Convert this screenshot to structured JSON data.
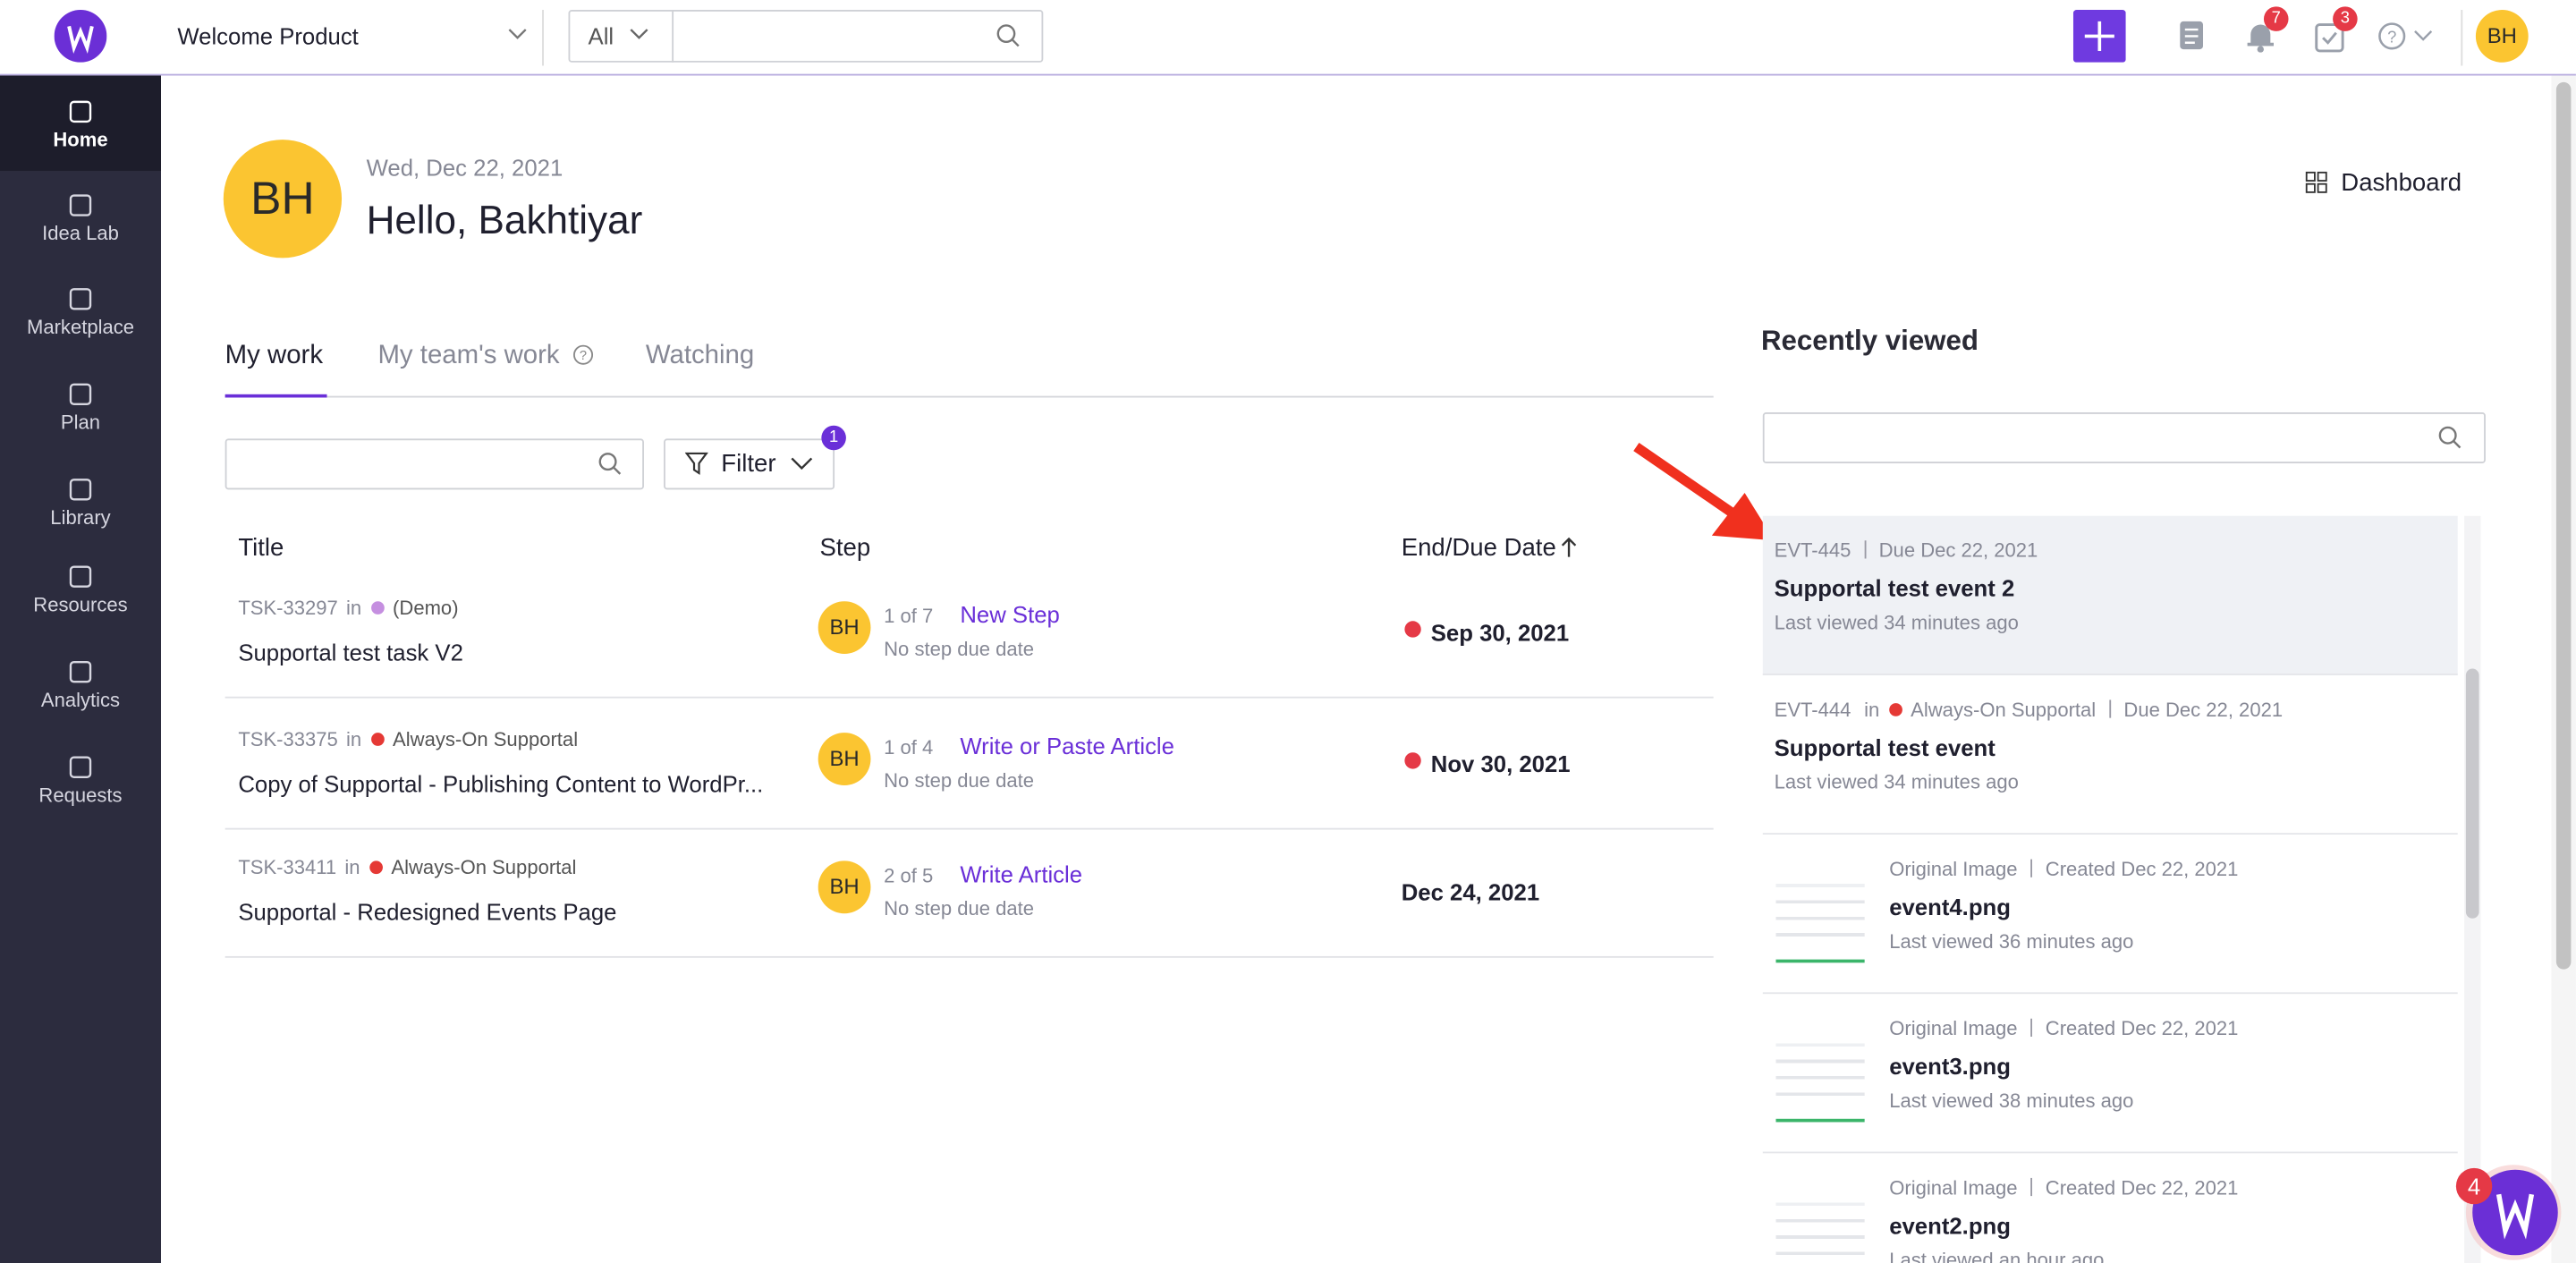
{
  "top_bar": {
    "workspace": "Welcome Product",
    "search_scope": "All",
    "notifications_badge": "7",
    "tasks_badge": "3",
    "avatar": "BH"
  },
  "sidebar": {
    "items": [
      "Home",
      "Idea Lab",
      "Marketplace",
      "Plan",
      "Library",
      "Resources",
      "Analytics",
      "Requests"
    ]
  },
  "header": {
    "avatar": "BH",
    "date": "Wed, Dec 22, 2021",
    "greeting": "Hello, Bakhtiyar",
    "dashboard": "Dashboard"
  },
  "tabs": [
    "My work",
    "My team's work",
    "Watching"
  ],
  "filter": {
    "label": "Filter",
    "badge": "1"
  },
  "table": {
    "columns": [
      "Title",
      "Step",
      "End/Due Date"
    ],
    "rows": [
      {
        "id": "TSK-33297",
        "in": "in",
        "project": "(Demo)",
        "project_color": "#c58fe0",
        "title": "Supportal test task V2",
        "assignee": "BH",
        "step_count": "1 of 7",
        "step": "New Step",
        "step_due": "No step due date",
        "due": "Sep 30, 2021",
        "overdue": true
      },
      {
        "id": "TSK-33375",
        "in": "in",
        "project": "Always-On Supportal",
        "project_color": "#e53935",
        "title": "Copy of Supportal - Publishing Content to WordPr...",
        "assignee": "BH",
        "step_count": "1 of 4",
        "step": "Write or Paste Article",
        "step_due": "No step due date",
        "due": "Nov 30, 2021",
        "overdue": true
      },
      {
        "id": "TSK-33411",
        "in": "in",
        "project": "Always-On Supportal",
        "project_color": "#e53935",
        "title": "Supportal - Redesigned Events Page",
        "assignee": "BH",
        "step_count": "2 of 5",
        "step": "Write Article",
        "step_due": "No step due date",
        "due": "Dec 24, 2021",
        "overdue": false
      }
    ]
  },
  "recently_viewed": {
    "title": "Recently viewed",
    "items": [
      {
        "id": "EVT-445",
        "meta": "Due Dec 22, 2021",
        "title": "Supportal test event 2",
        "viewed": "Last viewed 34 minutes ago"
      },
      {
        "id": "EVT-444",
        "in": "in",
        "project": "Always-On Supportal",
        "project_color": "#e53935",
        "meta": "Due Dec 22, 2021",
        "title": "Supportal test event",
        "viewed": "Last viewed 34 minutes ago"
      },
      {
        "kind": "Original Image",
        "meta": "Created Dec 22, 2021",
        "title": "event4.png",
        "viewed": "Last viewed 36 minutes ago"
      },
      {
        "kind": "Original Image",
        "meta": "Created Dec 22, 2021",
        "title": "event3.png",
        "viewed": "Last viewed 38 minutes ago"
      },
      {
        "kind": "Original Image",
        "meta": "Created Dec 22, 2021",
        "title": "event2.png",
        "viewed": "Last viewed an hour ago"
      }
    ]
  },
  "chat_badge": "4"
}
